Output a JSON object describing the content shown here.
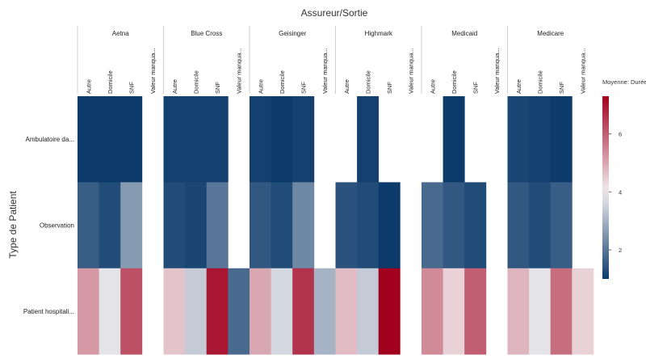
{
  "chart_data": {
    "type": "heatmap",
    "title": "Assureur/Sortie",
    "ylabel": "Type de Patient",
    "groups": [
      "Aetna",
      "Blue Cross",
      "Geisinger",
      "Highmark",
      "Medicaid",
      "Medicare"
    ],
    "columns": [
      "Autre",
      "Domicile",
      "SNF",
      "Valeur manqua..."
    ],
    "rows": [
      "Ambulatoire da...",
      "Observation",
      "Patient hospitali..."
    ],
    "values": [
      [
        [
          1.0,
          1.0,
          1.0,
          null
        ],
        [
          1.1,
          1.1,
          1.1,
          null
        ],
        [
          1.1,
          1.0,
          1.1,
          null
        ],
        [
          null,
          1.1,
          null,
          null
        ],
        [
          null,
          1.0,
          null,
          null
        ],
        [
          1.2,
          1.1,
          1.0,
          null
        ]
      ],
      [
        [
          1.6,
          1.3,
          2.6,
          null
        ],
        [
          1.3,
          1.2,
          2.0,
          null
        ],
        [
          1.5,
          1.3,
          2.3,
          null
        ],
        [
          1.4,
          1.3,
          1.0,
          null
        ],
        [
          1.8,
          1.5,
          1.3,
          null
        ],
        [
          1.5,
          1.3,
          1.6,
          null
        ]
      ],
      [
        [
          5.2,
          3.8,
          6.2,
          null
        ],
        [
          4.6,
          3.4,
          7.0,
          1.8
        ],
        [
          5.0,
          3.6,
          6.6,
          3.0
        ],
        [
          4.7,
          3.4,
          7.3,
          null
        ],
        [
          5.4,
          4.4,
          6.0,
          null
        ],
        [
          4.8,
          3.8,
          5.8,
          4.4
        ]
      ]
    ],
    "legend": {
      "title": "Moyenne: Durée du séjo...",
      "ticks": [
        2,
        4,
        6
      ],
      "min": 1.0,
      "max": 7.3,
      "mid": 4.0,
      "colors": {
        "low": "#0b3a6b",
        "mid": "#f2eff1",
        "high": "#a1001f"
      }
    }
  }
}
